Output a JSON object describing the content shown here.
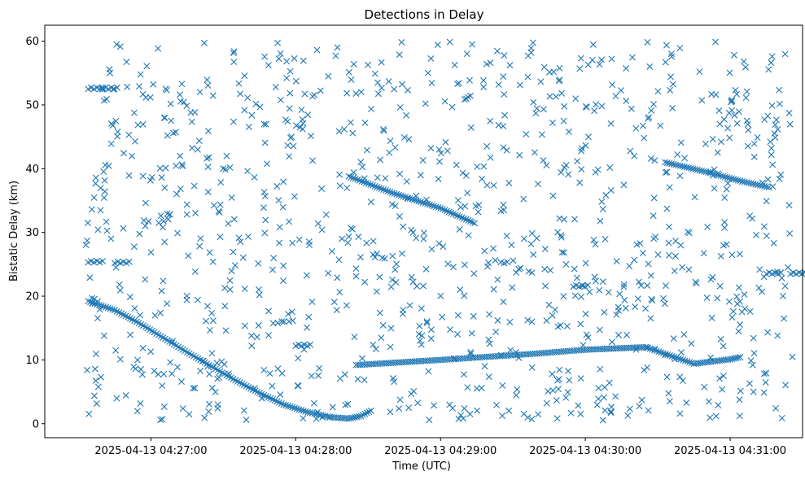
{
  "chart_data": {
    "type": "scatter",
    "title": "Detections in Delay",
    "xlabel": "Time (UTC)",
    "ylabel": "Bistatic Delay (km)",
    "marker": "x",
    "color": "#1f77b4",
    "grid": false,
    "legend": "none",
    "xlim": [
      "2025-04-13 04:26:16",
      "2025-04-13 04:31:30"
    ],
    "ylim": [
      -2.2,
      62.5
    ],
    "x_ticks": [
      "2025-04-13 04:27:00",
      "2025-04-13 04:28:00",
      "2025-04-13 04:29:00",
      "2025-04-13 04:30:00",
      "2025-04-13 04:31:00"
    ],
    "y_ticks": [
      0,
      10,
      20,
      30,
      40,
      50,
      60
    ],
    "series": [
      {
        "description": "curved track",
        "x_start": "2025-04-13 04:26:34",
        "x_end": "2025-04-13 04:28:32",
        "points": [
          [
            "2025-04-13 04:26:34",
            19.2
          ],
          [
            "2025-04-13 04:26:45",
            17.8
          ],
          [
            "2025-04-13 04:26:55",
            15.8
          ],
          [
            "2025-04-13 04:27:05",
            13.5
          ],
          [
            "2025-04-13 04:27:15",
            11.2
          ],
          [
            "2025-04-13 04:27:25",
            9.0
          ],
          [
            "2025-04-13 04:27:35",
            6.8
          ],
          [
            "2025-04-13 04:27:45",
            4.8
          ],
          [
            "2025-04-13 04:27:55",
            3.0
          ],
          [
            "2025-04-13 04:28:05",
            1.8
          ],
          [
            "2025-04-13 04:28:15",
            1.0
          ],
          [
            "2025-04-13 04:28:22",
            0.8
          ],
          [
            "2025-04-13 04:28:27",
            1.2
          ],
          [
            "2025-04-13 04:28:32",
            2.2
          ]
        ]
      },
      {
        "description": "descending track",
        "points": [
          [
            "2025-04-13 04:28:22",
            38.8
          ],
          [
            "2025-04-13 04:28:40",
            36.2
          ],
          [
            "2025-04-13 04:29:00",
            33.8
          ],
          [
            "2025-04-13 04:29:15",
            31.3
          ]
        ]
      },
      {
        "description": "near-flat track",
        "points": [
          [
            "2025-04-13 04:28:25",
            9.2
          ],
          [
            "2025-04-13 04:29:00",
            10.0
          ],
          [
            "2025-04-13 04:29:20",
            10.5
          ],
          [
            "2025-04-13 04:29:40",
            11.0
          ],
          [
            "2025-04-13 04:30:00",
            11.6
          ],
          [
            "2025-04-13 04:30:25",
            12.0
          ],
          [
            "2025-04-13 04:30:45",
            9.4
          ],
          [
            "2025-04-13 04:31:00",
            10.1
          ],
          [
            "2025-04-13 04:31:05",
            10.5
          ]
        ]
      },
      {
        "description": "late descending track",
        "points": [
          [
            "2025-04-13 04:30:33",
            41.0
          ],
          [
            "2025-04-13 04:30:50",
            39.5
          ],
          [
            "2025-04-13 04:31:05",
            38.0
          ],
          [
            "2025-04-13 04:31:17",
            37.0
          ]
        ]
      },
      {
        "description": "flat clusters",
        "points": [
          [
            "2025-04-13 04:26:34",
            52.6
          ],
          [
            "2025-04-13 04:26:40",
            52.6
          ],
          [
            "2025-04-13 04:26:34",
            25.4
          ],
          [
            "2025-04-13 04:26:45",
            25.3
          ],
          [
            "2025-04-13 04:31:15",
            23.6
          ],
          [
            "2025-04-13 04:31:25",
            23.6
          ],
          [
            "2025-04-13 04:29:55",
            21.6
          ],
          [
            "2025-04-13 04:28:00",
            12.3
          ]
        ]
      }
    ]
  }
}
